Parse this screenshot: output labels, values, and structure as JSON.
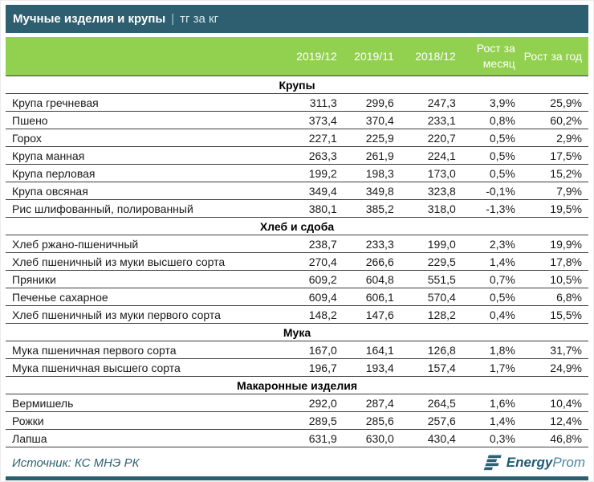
{
  "header": {
    "title_main": "Мучные изделия и крупы",
    "title_separator": "|",
    "title_unit": "тг за кг"
  },
  "chart_data": {
    "type": "table",
    "title": "Мучные изделия и крупы | тг за кг",
    "columns": [
      "2019/12",
      "2019/11",
      "2018/12",
      "Рост за месяц",
      "Рост за год"
    ],
    "sections": [
      {
        "name": "Крупы",
        "rows": [
          {
            "label": "Крупа гречневая",
            "values": [
              "311,3",
              "299,6",
              "247,3",
              "3,9%",
              "25,9%"
            ]
          },
          {
            "label": "Пшено",
            "values": [
              "373,4",
              "370,4",
              "233,1",
              "0,8%",
              "60,2%"
            ]
          },
          {
            "label": "Горох",
            "values": [
              "227,1",
              "225,9",
              "220,7",
              "0,5%",
              "2,9%"
            ]
          },
          {
            "label": "Крупа манная",
            "values": [
              "263,3",
              "261,9",
              "224,1",
              "0,5%",
              "17,5%"
            ]
          },
          {
            "label": "Крупа перловая",
            "values": [
              "199,2",
              "198,3",
              "173,0",
              "0,5%",
              "15,2%"
            ]
          },
          {
            "label": "Крупа овсяная",
            "values": [
              "349,4",
              "349,8",
              "323,8",
              "-0,1%",
              "7,9%"
            ]
          },
          {
            "label": "Рис шлифованный, полированный",
            "values": [
              "380,1",
              "385,2",
              "318,0",
              "-1,3%",
              "19,5%"
            ]
          }
        ]
      },
      {
        "name": "Хлеб и сдоба",
        "rows": [
          {
            "label": "Хлеб ржано-пшеничный",
            "values": [
              "238,7",
              "233,3",
              "199,0",
              "2,3%",
              "19,9%"
            ]
          },
          {
            "label": "Хлеб пшеничный из муки высшего сорта",
            "values": [
              "270,4",
              "266,6",
              "229,5",
              "1,4%",
              "17,8%"
            ]
          },
          {
            "label": "Пряники",
            "values": [
              "609,2",
              "604,8",
              "551,5",
              "0,7%",
              "10,5%"
            ]
          },
          {
            "label": "Печенье сахарное",
            "values": [
              "609,4",
              "606,1",
              "570,4",
              "0,5%",
              "6,8%"
            ]
          },
          {
            "label": "Хлеб пшеничный из муки первого сорта",
            "values": [
              "148,2",
              "147,6",
              "128,2",
              "0,4%",
              "15,5%"
            ]
          }
        ]
      },
      {
        "name": "Мука",
        "rows": [
          {
            "label": "Мука пшеничная первого сорта",
            "values": [
              "167,0",
              "164,1",
              "126,8",
              "1,8%",
              "31,7%"
            ]
          },
          {
            "label": "Мука пшеничная высшего сорта",
            "values": [
              "196,7",
              "193,4",
              "157,4",
              "1,7%",
              "24,9%"
            ]
          }
        ]
      },
      {
        "name": "Макаронные изделия",
        "rows": [
          {
            "label": "Вермишель",
            "values": [
              "292,0",
              "287,4",
              "264,5",
              "1,6%",
              "10,4%"
            ]
          },
          {
            "label": "Рожки",
            "values": [
              "289,5",
              "285,6",
              "257,6",
              "1,4%",
              "12,4%"
            ]
          },
          {
            "label": "Лапша",
            "values": [
              "631,9",
              "630,0",
              "430,4",
              "0,3%",
              "46,8%"
            ]
          }
        ]
      }
    ]
  },
  "footer": {
    "source": "Источник: КС МНЭ РК",
    "logo_bold": "Energy",
    "logo_light": "Prom"
  },
  "colors": {
    "title_bar_bg": "#2E5F70",
    "header_green": "#92D050",
    "border_line": "#3d3d3d",
    "source_text": "#2E6273",
    "bottom_bar": "#2B5F6F",
    "logo_dark": "#1F5B73",
    "logo_light": "#4B86A0"
  }
}
